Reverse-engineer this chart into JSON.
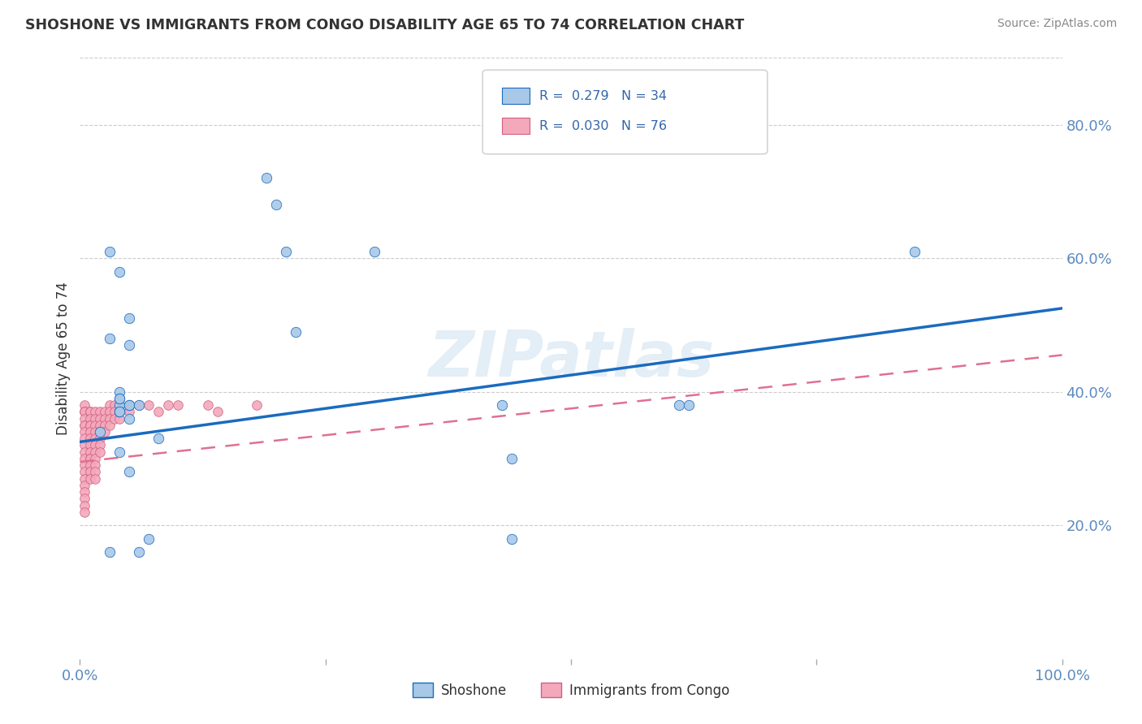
{
  "title": "SHOSHONE VS IMMIGRANTS FROM CONGO DISABILITY AGE 65 TO 74 CORRELATION CHART",
  "source": "Source: ZipAtlas.com",
  "ylabel": "Disability Age 65 to 74",
  "r_shoshone": 0.279,
  "n_shoshone": 34,
  "r_congo": 0.03,
  "n_congo": 76,
  "legend_label_1": "Shoshone",
  "legend_label_2": "Immigrants from Congo",
  "shoshone_color": "#a8c8e8",
  "congo_color": "#f4a8bc",
  "trend_shoshone_color": "#1a6bbf",
  "trend_congo_color": "#e07090",
  "watermark": "ZIPatlas",
  "shoshone_x": [
    0.02,
    0.03,
    0.04,
    0.03,
    0.04,
    0.04,
    0.04,
    0.04,
    0.04,
    0.05,
    0.05,
    0.05,
    0.06,
    0.19,
    0.2,
    0.21,
    0.22,
    0.3,
    0.43,
    0.44,
    0.61,
    0.62,
    0.85,
    0.04,
    0.05,
    0.06,
    0.07,
    0.05,
    0.04,
    0.44,
    0.03,
    0.05,
    0.08,
    0.04
  ],
  "shoshone_y": [
    0.34,
    0.61,
    0.58,
    0.48,
    0.37,
    0.38,
    0.4,
    0.39,
    0.39,
    0.38,
    0.51,
    0.38,
    0.38,
    0.72,
    0.68,
    0.61,
    0.49,
    0.61,
    0.38,
    0.3,
    0.38,
    0.38,
    0.61,
    0.31,
    0.28,
    0.16,
    0.18,
    0.47,
    0.37,
    0.18,
    0.16,
    0.36,
    0.33,
    0.37
  ],
  "congo_x": [
    0.005,
    0.005,
    0.005,
    0.005,
    0.005,
    0.005,
    0.005,
    0.005,
    0.005,
    0.005,
    0.005,
    0.005,
    0.005,
    0.005,
    0.005,
    0.005,
    0.005,
    0.005,
    0.005,
    0.005,
    0.01,
    0.01,
    0.01,
    0.01,
    0.01,
    0.01,
    0.01,
    0.01,
    0.01,
    0.01,
    0.01,
    0.01,
    0.01,
    0.01,
    0.015,
    0.015,
    0.015,
    0.015,
    0.015,
    0.015,
    0.015,
    0.015,
    0.015,
    0.015,
    0.015,
    0.02,
    0.02,
    0.02,
    0.02,
    0.02,
    0.02,
    0.02,
    0.025,
    0.025,
    0.025,
    0.025,
    0.03,
    0.03,
    0.03,
    0.03,
    0.035,
    0.035,
    0.035,
    0.04,
    0.04,
    0.04,
    0.05,
    0.05,
    0.06,
    0.07,
    0.08,
    0.09,
    0.1,
    0.13,
    0.14,
    0.18
  ],
  "congo_y": [
    0.38,
    0.37,
    0.37,
    0.37,
    0.36,
    0.35,
    0.35,
    0.34,
    0.33,
    0.32,
    0.31,
    0.3,
    0.29,
    0.28,
    0.27,
    0.26,
    0.25,
    0.24,
    0.23,
    0.22,
    0.37,
    0.37,
    0.36,
    0.35,
    0.35,
    0.34,
    0.33,
    0.32,
    0.31,
    0.3,
    0.3,
    0.29,
    0.28,
    0.27,
    0.37,
    0.36,
    0.35,
    0.34,
    0.33,
    0.32,
    0.31,
    0.3,
    0.29,
    0.28,
    0.27,
    0.37,
    0.36,
    0.35,
    0.34,
    0.33,
    0.32,
    0.31,
    0.37,
    0.36,
    0.35,
    0.34,
    0.38,
    0.37,
    0.36,
    0.35,
    0.38,
    0.37,
    0.36,
    0.38,
    0.37,
    0.36,
    0.38,
    0.37,
    0.38,
    0.38,
    0.37,
    0.38,
    0.38,
    0.38,
    0.37,
    0.38
  ],
  "xlim": [
    0.0,
    1.0
  ],
  "ylim": [
    0.0,
    0.9
  ],
  "xtick_positions": [
    0.0,
    0.25,
    0.5,
    0.75,
    1.0
  ],
  "xtick_labels": [
    "0.0%",
    "",
    "",
    "",
    "100.0%"
  ],
  "ytick_positions": [
    0.2,
    0.4,
    0.6,
    0.8
  ],
  "ytick_labels": [
    "20.0%",
    "40.0%",
    "60.0%",
    "80.0%"
  ],
  "trend_shoshone_start_y": 0.325,
  "trend_shoshone_end_y": 0.525,
  "trend_congo_start_y": 0.295,
  "trend_congo_end_y": 0.455,
  "background_color": "#ffffff",
  "grid_color": "#cccccc"
}
